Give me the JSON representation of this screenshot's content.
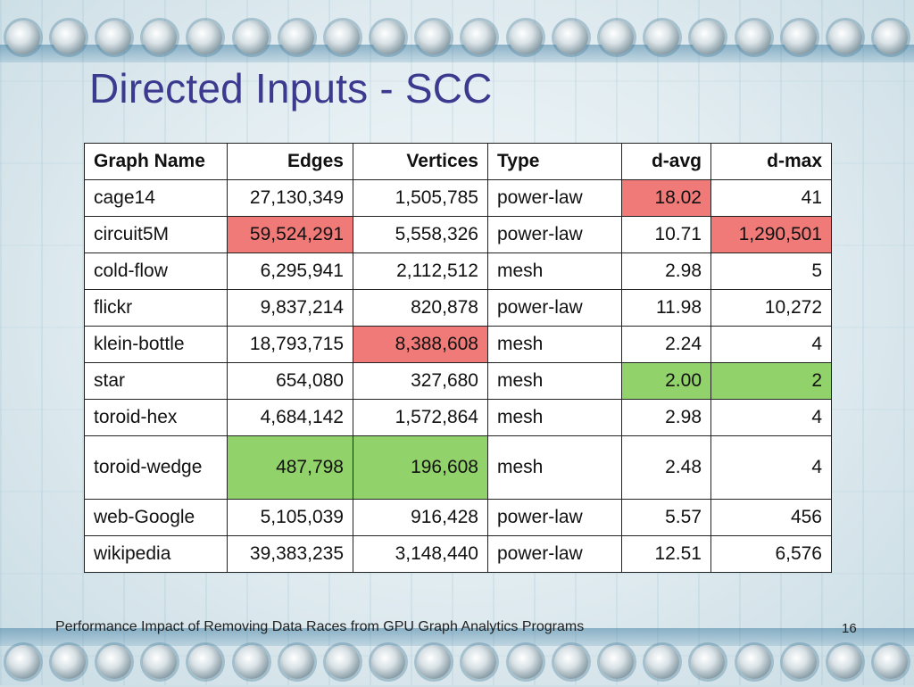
{
  "slide": {
    "title": "Directed Inputs - SCC",
    "footer": "Performance Impact of Removing Data Races from GPU Graph Analytics Programs",
    "page_number": "16"
  },
  "colors": {
    "title": "#3b3a8f",
    "highlight_red": "#f07a78",
    "highlight_green": "#92d26a"
  },
  "table": {
    "headers": [
      "Graph Name",
      "Edges",
      "Vertices",
      "Type",
      "d-avg",
      "d-max"
    ],
    "rows": [
      [
        "cage14",
        "27,130,349",
        "1,505,785",
        "power-law",
        "18.02",
        "41"
      ],
      [
        "circuit5M",
        "59,524,291",
        "5,558,326",
        "power-law",
        "10.71",
        "1,290,501"
      ],
      [
        "cold-flow",
        "6,295,941",
        "2,112,512",
        "mesh",
        "2.98",
        "5"
      ],
      [
        "flickr",
        "9,837,214",
        "820,878",
        "power-law",
        "11.98",
        "10,272"
      ],
      [
        "klein-bottle",
        "18,793,715",
        "8,388,608",
        "mesh",
        "2.24",
        "4"
      ],
      [
        "star",
        "654,080",
        "327,680",
        "mesh",
        "2.00",
        "2"
      ],
      [
        "toroid-hex",
        "4,684,142",
        "1,572,864",
        "mesh",
        "2.98",
        "4"
      ],
      [
        "toroid-wedge",
        "487,798",
        "196,608",
        "mesh",
        "2.48",
        "4"
      ],
      [
        "web-Google",
        "5,105,039",
        "916,428",
        "power-law",
        "5.57",
        "456"
      ],
      [
        "wikipedia",
        "39,383,235",
        "3,148,440",
        "power-law",
        "12.51",
        "6,576"
      ]
    ]
  }
}
